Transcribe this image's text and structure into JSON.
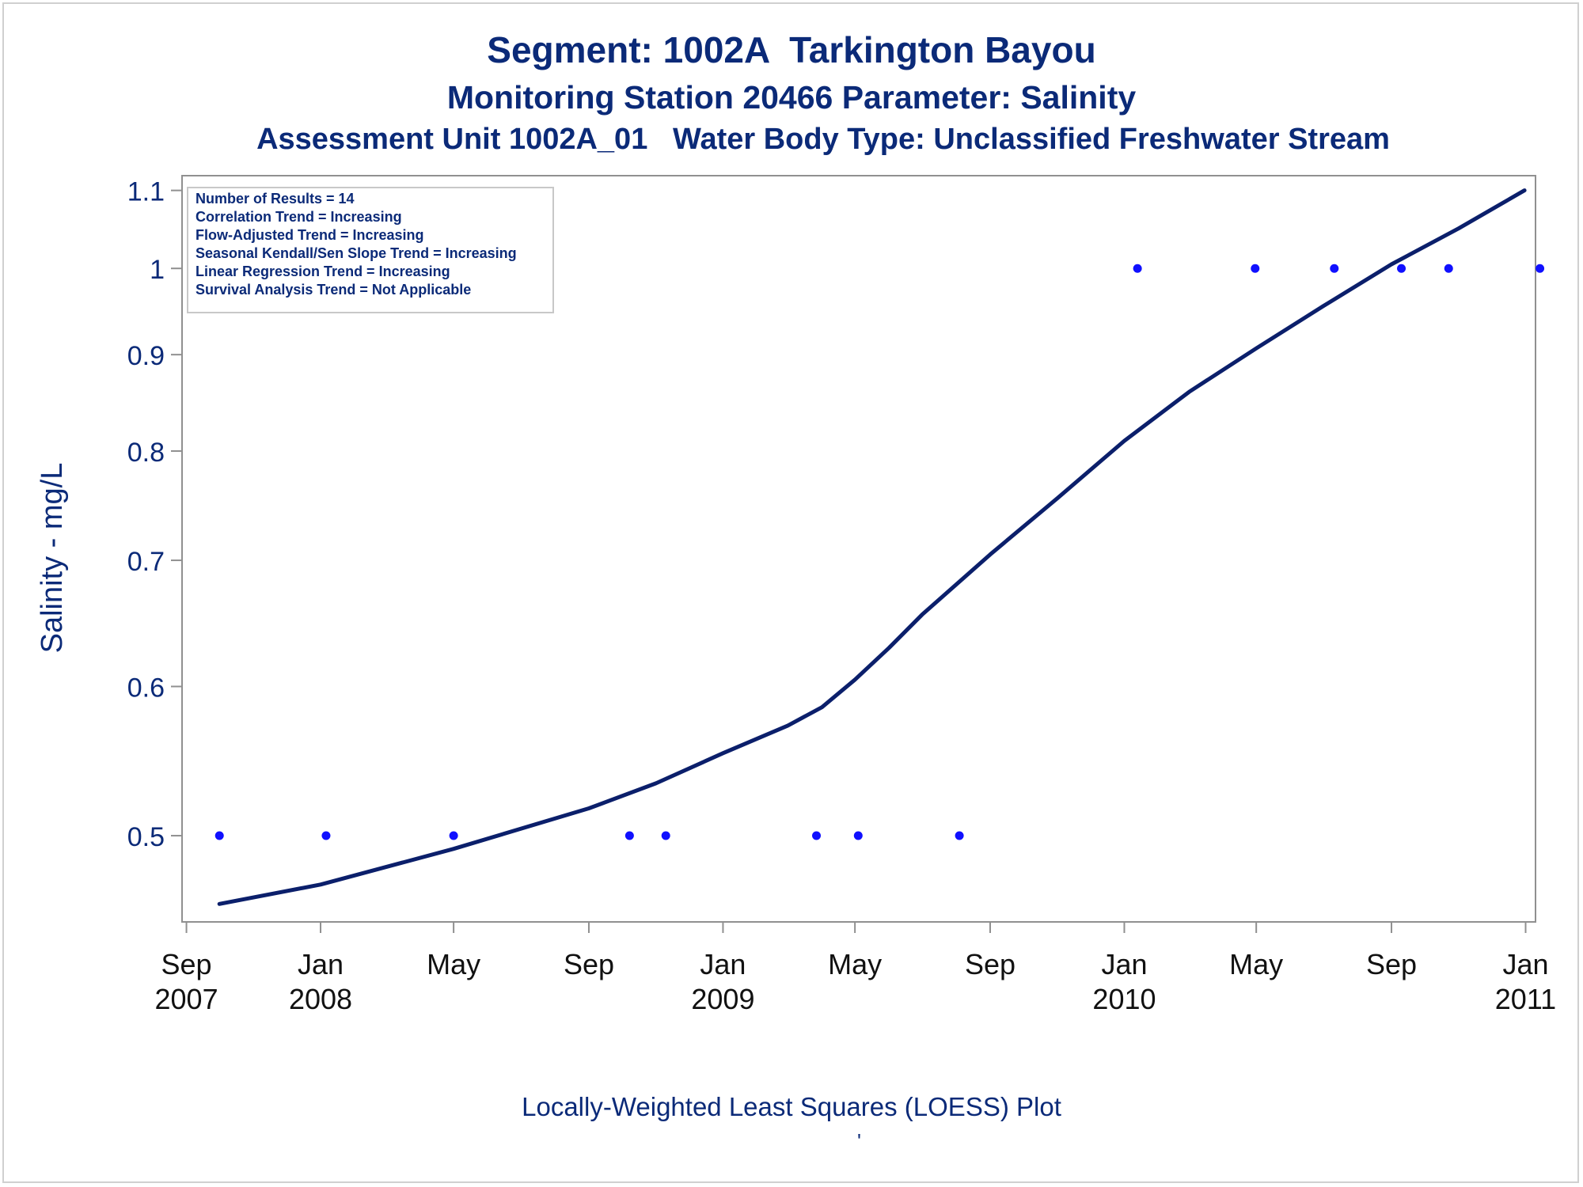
{
  "titles": {
    "line1": "Segment: 1002A  Tarkington Bayou",
    "line2": "Monitoring Station 20466 Parameter: Salinity",
    "line3": "Assessment Unit 1002A_01   Water Body Type: Unclassified Freshwater Stream"
  },
  "footnote": "Locally-Weighted Least Squares (LOESS) Plot",
  "footnote_mark": "'",
  "colors": {
    "text": "#0b2a78",
    "points": "#1010ff",
    "line": "#0b1f6b",
    "axis": "#909090"
  },
  "chart_data": {
    "type": "scatter",
    "ylabel": "Salinity - mg/L",
    "yscale": "log",
    "ylim": [
      0.45,
      1.12
    ],
    "yticks": [
      0.5,
      0.6,
      0.7,
      0.8,
      0.9,
      1,
      1.1
    ],
    "ytick_labels": [
      "0.5",
      "0.6",
      "0.7",
      "0.8",
      "0.9",
      "1",
      "1.1"
    ],
    "xlim": [
      "2007-08-28",
      "2011-01-10"
    ],
    "xticks": [
      {
        "date": "2007-09-01",
        "label": [
          "Sep",
          "2007"
        ]
      },
      {
        "date": "2008-01-01",
        "label": [
          "Jan",
          "2008"
        ]
      },
      {
        "date": "2008-05-01",
        "label": [
          "May",
          ""
        ]
      },
      {
        "date": "2008-09-01",
        "label": [
          "Sep",
          ""
        ]
      },
      {
        "date": "2009-01-01",
        "label": [
          "Jan",
          "2009"
        ]
      },
      {
        "date": "2009-05-01",
        "label": [
          "May",
          ""
        ]
      },
      {
        "date": "2009-09-01",
        "label": [
          "Sep",
          ""
        ]
      },
      {
        "date": "2010-01-01",
        "label": [
          "Jan",
          "2010"
        ]
      },
      {
        "date": "2010-05-01",
        "label": [
          "May",
          ""
        ]
      },
      {
        "date": "2010-09-01",
        "label": [
          "Sep",
          ""
        ]
      },
      {
        "date": "2011-01-01",
        "label": [
          "Jan",
          "2011"
        ]
      }
    ],
    "series": [
      {
        "kind": "points",
        "points": [
          {
            "x": "2007-10-01",
            "y": 0.5
          },
          {
            "x": "2008-01-06",
            "y": 0.5
          },
          {
            "x": "2008-05-01",
            "y": 0.5
          },
          {
            "x": "2008-10-08",
            "y": 0.5
          },
          {
            "x": "2008-11-10",
            "y": 0.5
          },
          {
            "x": "2009-03-27",
            "y": 0.5
          },
          {
            "x": "2009-05-04",
            "y": 0.5
          },
          {
            "x": "2009-08-04",
            "y": 0.5
          },
          {
            "x": "2010-01-13",
            "y": 1
          },
          {
            "x": "2010-04-30",
            "y": 1
          },
          {
            "x": "2010-07-11",
            "y": 1
          },
          {
            "x": "2010-09-10",
            "y": 1
          },
          {
            "x": "2010-10-23",
            "y": 1
          },
          {
            "x": "2011-01-14",
            "y": 1
          }
        ]
      },
      {
        "kind": "loess",
        "points": [
          {
            "x": "2007-10-01",
            "y": 0.46
          },
          {
            "x": "2008-01-01",
            "y": 0.471
          },
          {
            "x": "2008-05-01",
            "y": 0.492
          },
          {
            "x": "2008-09-01",
            "y": 0.517
          },
          {
            "x": "2008-11-01",
            "y": 0.533
          },
          {
            "x": "2009-01-01",
            "y": 0.553
          },
          {
            "x": "2009-03-01",
            "y": 0.572
          },
          {
            "x": "2009-04-01",
            "y": 0.585
          },
          {
            "x": "2009-05-01",
            "y": 0.605
          },
          {
            "x": "2009-06-01",
            "y": 0.629
          },
          {
            "x": "2009-07-01",
            "y": 0.655
          },
          {
            "x": "2009-09-01",
            "y": 0.705
          },
          {
            "x": "2009-11-01",
            "y": 0.755
          },
          {
            "x": "2010-01-01",
            "y": 0.81
          },
          {
            "x": "2010-03-01",
            "y": 0.86
          },
          {
            "x": "2010-05-01",
            "y": 0.907
          },
          {
            "x": "2010-07-01",
            "y": 0.955
          },
          {
            "x": "2010-09-01",
            "y": 1.005
          },
          {
            "x": "2010-11-01",
            "y": 1.05
          },
          {
            "x": "2010-12-31",
            "y": 1.1
          }
        ]
      }
    ],
    "inset_box": [
      "Number of Results = 14",
      "Correlation Trend = Increasing",
      "Flow-Adjusted Trend = Increasing",
      "Seasonal Kendall/Sen Slope Trend = Increasing",
      "Linear Regression Trend = Increasing",
      "Survival Analysis Trend = Not Applicable"
    ]
  }
}
